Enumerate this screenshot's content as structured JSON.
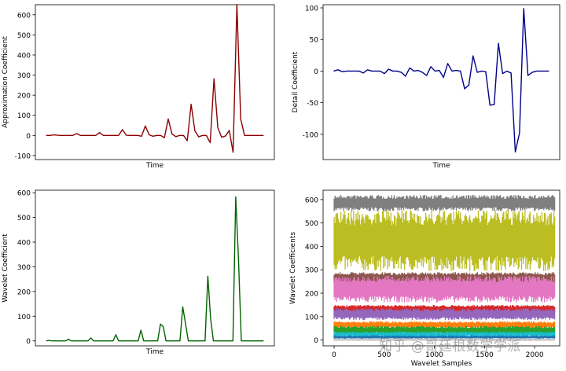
{
  "watermark": "知乎 @哥廷根数学学派",
  "chart_data": [
    {
      "id": "approx",
      "type": "line",
      "title": "",
      "xlabel": "Time",
      "ylabel": "Approximation Coefficient",
      "ylim": [
        -120,
        650
      ],
      "yticks": [
        -100,
        0,
        100,
        200,
        300,
        400,
        500,
        600
      ],
      "show_xticks": false,
      "color": "#8b0000",
      "series": [
        {
          "values": [
            0,
            0,
            3,
            1,
            0,
            0,
            0,
            0,
            9,
            0,
            0,
            0,
            0,
            0,
            14,
            0,
            0,
            0,
            0,
            0,
            29,
            1,
            0,
            0,
            0,
            -4,
            47,
            3,
            -4,
            0,
            0,
            -11,
            82,
            7,
            -6,
            0,
            0,
            -26,
            155,
            22,
            -7,
            0,
            0,
            -36,
            282,
            39,
            -9,
            -3,
            25,
            -84,
            651,
            82,
            0,
            0,
            0,
            0,
            0,
            0
          ]
        }
      ]
    },
    {
      "id": "detail",
      "type": "line",
      "title": "",
      "xlabel": "Time",
      "ylabel": "Detail Coefficient",
      "ylim": [
        -140,
        105
      ],
      "yticks": [
        -100,
        -50,
        0,
        50,
        100
      ],
      "show_xticks": false,
      "color": "#00008b",
      "series": [
        {
          "values": [
            0,
            2,
            -1,
            0,
            0,
            0,
            0,
            -3,
            2,
            0,
            0,
            0,
            -4,
            3,
            0,
            0,
            -2,
            -8,
            5,
            0,
            1,
            -2,
            -7,
            7,
            0,
            1,
            -10,
            12,
            0,
            1,
            0,
            -28,
            -22,
            24,
            -2,
            0,
            -1,
            -54,
            -53,
            44,
            -4,
            0,
            -3,
            -128,
            -98,
            99,
            -7,
            -2,
            0,
            0,
            0,
            0
          ]
        }
      ]
    },
    {
      "id": "wavelet",
      "type": "line",
      "title": "",
      "xlabel": "Time",
      "ylabel": "Wavelet Coefficient",
      "ylim": [
        -20,
        610
      ],
      "yticks": [
        0,
        100,
        200,
        300,
        400,
        500,
        600
      ],
      "show_xticks": false,
      "color": "#006400",
      "series": [
        {
          "values": [
            0,
            2,
            0,
            0,
            0,
            0,
            0,
            0,
            7,
            0,
            0,
            0,
            0,
            0,
            0,
            0,
            12,
            0,
            0,
            0,
            0,
            0,
            0,
            0,
            0,
            25,
            0,
            0,
            0,
            0,
            0,
            0,
            0,
            0,
            43,
            0,
            0,
            0,
            0,
            0,
            0,
            68,
            58,
            0,
            0,
            0,
            0,
            0,
            0,
            138,
            70,
            0,
            0,
            0,
            0,
            0,
            0,
            0,
            262,
            90,
            0,
            0,
            0,
            0,
            0,
            0,
            0,
            0,
            583,
            330,
            0,
            0,
            0,
            0,
            0,
            0,
            0,
            0,
            0
          ]
        }
      ]
    },
    {
      "id": "samples",
      "type": "line",
      "title": "",
      "xlabel": "Wavelet Samples",
      "ylabel": "Wavelet Coefficients",
      "xlim": [
        -110,
        2250
      ],
      "ylim": [
        -25,
        640
      ],
      "xticks": [
        0,
        500,
        1000,
        1500,
        2000
      ],
      "yticks": [
        0,
        100,
        200,
        300,
        400,
        500,
        600
      ],
      "series_note_colors": [
        "#7f7f7f",
        "#bcbd22",
        "#8c564b",
        "#e377c2",
        "#9467bd",
        "#d62728",
        "#ff7f0e",
        "#2ca02c",
        "#17becf",
        "#1f77b4"
      ],
      "bands": [
        {
          "color": "#7f7f7f",
          "low": 550,
          "high": 620
        },
        {
          "color": "#bcbd22",
          "low": 295,
          "high": 555
        },
        {
          "color": "#8c564b",
          "low": 240,
          "high": 290
        },
        {
          "color": "#e377c2",
          "low": 160,
          "high": 275
        },
        {
          "color": "#d62728",
          "low": 115,
          "high": 150
        },
        {
          "color": "#9467bd",
          "low": 85,
          "high": 135
        },
        {
          "color": "#ff7f0e",
          "low": 50,
          "high": 80
        },
        {
          "color": "#2ca02c",
          "low": 25,
          "high": 60
        },
        {
          "color": "#17becf",
          "low": 15,
          "high": 35
        },
        {
          "color": "#1f77b4",
          "low": 5,
          "high": 20
        },
        {
          "color": "#c7c7c7",
          "low": -5,
          "high": 8
        }
      ],
      "n_samples": 2200
    }
  ]
}
